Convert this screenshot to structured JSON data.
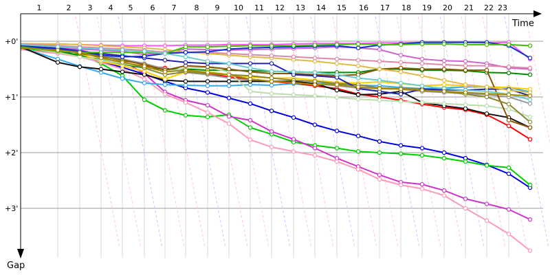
{
  "chart_data": {
    "type": "line",
    "xlabel": "Time",
    "ylabel": "Gap",
    "lap_ticks": [
      "1",
      "2",
      "3",
      "4",
      "5",
      "6",
      "7",
      "8",
      "9",
      "10",
      "11",
      "12",
      "13",
      "14",
      "15",
      "16",
      "17",
      "18",
      "19",
      "20",
      "21",
      "22",
      "23"
    ],
    "gap_ticks": [
      "+0'",
      "+1'",
      "+2'",
      "+3'"
    ],
    "gap_range_min": [
      0,
      3.5
    ],
    "lap_range": [
      0,
      24
    ],
    "grid": true,
    "series": [
      {
        "color": "#ff0000",
        "values": [
          0.15,
          0.19,
          0.26,
          0.34,
          0.4,
          0.44,
          0.48,
          0.56,
          0.58,
          0.64,
          0.68,
          0.72,
          0.76,
          0.8,
          0.85,
          0.95,
          1.0,
          1.06,
          1.13,
          1.19,
          1.23,
          1.32,
          1.52,
          1.76
        ]
      },
      {
        "color": "#0000dd",
        "values": [
          0.1,
          0.16,
          0.26,
          0.36,
          0.47,
          0.59,
          0.72,
          0.84,
          0.92,
          1.02,
          1.12,
          1.25,
          1.37,
          1.5,
          1.61,
          1.7,
          1.8,
          1.87,
          1.92,
          2.0,
          2.1,
          2.22,
          2.38,
          2.63
        ]
      },
      {
        "color": "#00cc00",
        "values": [
          0.14,
          0.2,
          0.24,
          0.4,
          0.62,
          1.05,
          1.24,
          1.33,
          1.36,
          1.32,
          1.55,
          1.67,
          1.81,
          1.87,
          1.92,
          1.98,
          2.0,
          2.02,
          2.05,
          2.1,
          2.16,
          2.23,
          2.27,
          2.58
        ]
      },
      {
        "color": "#ff55ff",
        "values": [
          0.08,
          0.05,
          0.06,
          0.07,
          0.08,
          0.08,
          0.08,
          0.07,
          0.07,
          0.06,
          0.06,
          0.06,
          0.05,
          0.04,
          0.04,
          0.04,
          0.03,
          0.03,
          0.02,
          0.02,
          0.02,
          0.03,
          0.02,
          0.32
        ]
      },
      {
        "color": "#cc33cc",
        "values": [
          0.08,
          0.12,
          0.16,
          0.24,
          0.35,
          0.58,
          0.91,
          1.06,
          1.15,
          1.35,
          1.42,
          1.62,
          1.76,
          1.92,
          2.1,
          2.25,
          2.4,
          2.53,
          2.57,
          2.68,
          2.83,
          2.92,
          3.02,
          3.2
        ]
      },
      {
        "color": "#ff99bb",
        "values": [
          0.15,
          0.22,
          0.28,
          0.38,
          0.5,
          0.68,
          0.95,
          1.1,
          1.28,
          1.48,
          1.77,
          1.9,
          1.98,
          2.05,
          2.16,
          2.3,
          2.48,
          2.58,
          2.65,
          2.77,
          3.0,
          3.22,
          3.46,
          3.76
        ]
      },
      {
        "color": "#008800",
        "values": [
          0.1,
          0.18,
          0.26,
          0.33,
          0.41,
          0.48,
          0.5,
          0.5,
          0.52,
          0.52,
          0.53,
          0.54,
          0.55,
          0.56,
          0.56,
          0.56,
          0.5,
          0.5,
          0.52,
          0.52,
          0.53,
          0.56,
          0.57,
          0.6
        ]
      },
      {
        "color": "#33aaee",
        "values": [
          0.12,
          0.32,
          0.45,
          0.56,
          0.67,
          0.75,
          0.78,
          0.79,
          0.8,
          0.8,
          0.78,
          0.79,
          0.76,
          0.76,
          0.76,
          0.79,
          0.8,
          0.83,
          0.85,
          0.84,
          0.82,
          0.82,
          0.83,
          0.91
        ]
      },
      {
        "color": "#999999",
        "values": [
          0.12,
          0.15,
          0.2,
          0.26,
          0.32,
          0.4,
          0.5,
          0.56,
          0.6,
          0.66,
          0.7,
          0.72,
          0.72,
          0.76,
          0.8,
          0.84,
          0.85,
          0.86,
          0.9,
          0.92,
          0.94,
          0.96,
          1.0,
          1.12
        ]
      },
      {
        "color": "#111111",
        "values": [
          0.1,
          0.38,
          0.46,
          0.5,
          0.55,
          0.6,
          0.7,
          0.72,
          0.72,
          0.72,
          0.72,
          0.72,
          0.72,
          0.76,
          0.88,
          0.96,
          0.95,
          0.9,
          1.1,
          1.16,
          1.21,
          1.3,
          1.37,
          1.55
        ]
      },
      {
        "color": "#ffcc00",
        "values": [
          0.06,
          0.12,
          0.22,
          0.36,
          0.44,
          0.54,
          0.68,
          0.55,
          0.55,
          0.6,
          0.64,
          0.66,
          0.66,
          0.7,
          0.74,
          0.75,
          0.73,
          0.76,
          0.8,
          0.78,
          0.8,
          0.82,
          0.83,
          0.86
        ]
      },
      {
        "color": "#bbddaa",
        "values": [
          0.1,
          0.2,
          0.28,
          0.34,
          0.4,
          0.46,
          0.55,
          0.48,
          0.47,
          0.55,
          0.9,
          0.94,
          0.96,
          0.98,
          1.01,
          1.04,
          1.06,
          1.08,
          1.1,
          1.12,
          1.14,
          1.16,
          1.22,
          1.36
        ]
      },
      {
        "color": "#885500",
        "values": [
          0.1,
          0.14,
          0.22,
          0.28,
          0.34,
          0.42,
          0.52,
          0.44,
          0.46,
          0.5,
          0.55,
          0.58,
          0.58,
          0.6,
          0.62,
          0.6,
          0.5,
          0.48,
          0.5,
          0.5,
          0.52,
          0.52,
          1.42,
          1.55
        ]
      },
      {
        "color": "#888833",
        "values": [
          0.12,
          0.16,
          0.2,
          0.26,
          0.36,
          0.48,
          0.6,
          0.55,
          0.58,
          0.6,
          0.62,
          0.66,
          0.7,
          0.72,
          0.76,
          0.78,
          0.84,
          0.85,
          0.86,
          0.9,
          0.95,
          1.0,
          1.13,
          1.45
        ]
      },
      {
        "color": "#2222aa",
        "values": [
          0.08,
          0.12,
          0.18,
          0.22,
          0.26,
          0.3,
          0.34,
          0.38,
          0.4,
          0.4,
          0.4,
          0.4,
          0.6,
          0.62,
          0.65,
          0.85,
          0.9,
          0.95,
          0.86,
          0.87,
          0.88,
          0.86,
          0.86,
          0.98
        ]
      },
      {
        "color": "#cc66cc",
        "values": [
          0.06,
          0.1,
          0.14,
          0.16,
          0.18,
          0.24,
          0.2,
          0.14,
          0.15,
          0.16,
          0.15,
          0.14,
          0.13,
          0.12,
          0.1,
          0.12,
          0.15,
          0.25,
          0.32,
          0.35,
          0.36,
          0.4,
          0.48,
          0.5
        ]
      },
      {
        "color": "#ddbb44",
        "values": [
          0.04,
          0.05,
          0.06,
          0.08,
          0.1,
          0.12,
          0.15,
          0.2,
          0.22,
          0.25,
          0.28,
          0.3,
          0.33,
          0.36,
          0.4,
          0.44,
          0.5,
          0.55,
          0.62,
          0.7,
          0.78,
          0.82,
          0.88,
          0.92
        ]
      },
      {
        "color": "#dd88aa",
        "values": [
          0.05,
          0.08,
          0.1,
          0.12,
          0.14,
          0.16,
          0.2,
          0.2,
          0.2,
          0.22,
          0.24,
          0.26,
          0.28,
          0.3,
          0.32,
          0.34,
          0.36,
          0.38,
          0.4,
          0.42,
          0.44,
          0.44,
          0.46,
          0.48
        ]
      },
      {
        "color": "#1133cc",
        "values": [
          0.1,
          0.14,
          0.18,
          0.25,
          0.28,
          0.27,
          0.22,
          0.2,
          0.19,
          0.14,
          0.12,
          0.11,
          0.1,
          0.09,
          0.08,
          0.12,
          0.07,
          0.05,
          0.02,
          0.02,
          0.02,
          0.02,
          0.08,
          0.3
        ]
      },
      {
        "color": "#44bb00",
        "values": [
          0.1,
          0.18,
          0.2,
          0.2,
          0.2,
          0.2,
          0.22,
          0.1,
          0.1,
          0.09,
          0.08,
          0.08,
          0.08,
          0.07,
          0.06,
          0.05,
          0.06,
          0.06,
          0.05,
          0.05,
          0.06,
          0.06,
          0.06,
          0.08
        ]
      },
      {
        "color": "#66cccc",
        "values": [
          0.06,
          0.1,
          0.12,
          0.14,
          0.16,
          0.18,
          0.22,
          0.28,
          0.36,
          0.4,
          0.48,
          0.54,
          0.55,
          0.56,
          0.6,
          0.66,
          0.7,
          0.75,
          0.8,
          0.85,
          0.88,
          0.9,
          0.95,
          1.05
        ]
      },
      {
        "color": "#aa8800",
        "values": [
          0.12,
          0.16,
          0.2,
          0.3,
          0.38,
          0.45,
          0.55,
          0.52,
          0.56,
          0.6,
          0.68,
          0.72,
          0.74,
          0.78,
          0.78,
          0.82,
          0.85,
          0.86,
          0.88,
          0.9,
          0.92,
          0.94,
          0.96,
          0.98
        ]
      }
    ]
  }
}
